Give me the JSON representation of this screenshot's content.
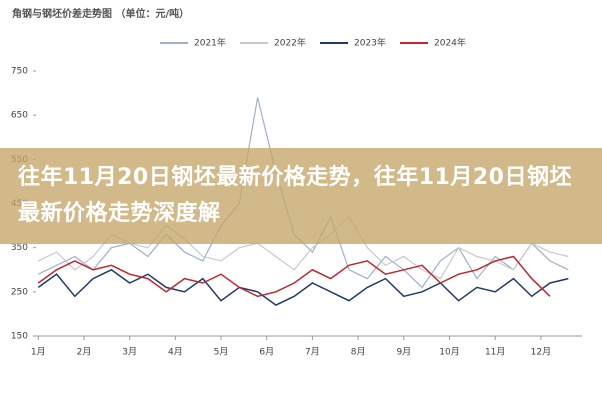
{
  "chart_data": {
    "type": "line",
    "title": "角钢与钢坯价差走势图 （单位：元/吨）",
    "x": [
      1,
      1.4,
      1.8,
      2.2,
      2.6,
      3,
      3.4,
      3.8,
      4.2,
      4.6,
      5,
      5.4,
      5.8,
      6.2,
      6.6,
      7,
      7.4,
      7.8,
      8.2,
      8.6,
      9,
      9.4,
      9.8,
      10.2,
      10.6,
      11,
      11.4,
      11.8,
      12.2,
      12.6
    ],
    "series": [
      {
        "name": "2021年",
        "color": "#9fb0cc",
        "values": [
          290,
          310,
          330,
          300,
          350,
          360,
          330,
          380,
          340,
          320,
          400,
          450,
          690,
          520,
          380,
          340,
          420,
          300,
          280,
          330,
          300,
          260,
          320,
          350,
          280,
          330,
          300,
          360,
          320,
          300
        ]
      },
      {
        "name": "2022年",
        "color": "#c9c9c9",
        "values": [
          320,
          340,
          300,
          330,
          380,
          360,
          350,
          400,
          370,
          330,
          320,
          350,
          360,
          330,
          300,
          350,
          380,
          420,
          350,
          310,
          330,
          300,
          280,
          350,
          330,
          320,
          300,
          360,
          340,
          330
        ]
      },
      {
        "name": "2023年",
        "color": "#1f3a6e",
        "values": [
          260,
          290,
          240,
          280,
          300,
          270,
          290,
          260,
          250,
          280,
          230,
          260,
          250,
          220,
          240,
          270,
          250,
          230,
          260,
          280,
          240,
          250,
          270,
          230,
          260,
          250,
          280,
          240,
          270,
          280
        ]
      },
      {
        "name": "2024年",
        "color": "#c0282d",
        "values": [
          270,
          300,
          320,
          300,
          310,
          290,
          280,
          250,
          280,
          270,
          290,
          260,
          240,
          250,
          270,
          300,
          280,
          310,
          320,
          290,
          300,
          310,
          270,
          290,
          300,
          320,
          330,
          280,
          240,
          null
        ]
      }
    ],
    "xlim": [
      0.95,
      12.9
    ],
    "xticks": [
      {
        "value": 1,
        "label": "1月"
      },
      {
        "value": 2,
        "label": "2月"
      },
      {
        "value": 3,
        "label": "3月"
      },
      {
        "value": 4,
        "label": "4月"
      },
      {
        "value": 5,
        "label": "5月"
      },
      {
        "value": 6,
        "label": "6月"
      },
      {
        "value": 7,
        "label": "7月"
      },
      {
        "value": 8,
        "label": "8月"
      },
      {
        "value": 9,
        "label": "9月"
      },
      {
        "value": 10,
        "label": "10月"
      },
      {
        "value": 11,
        "label": "11月"
      },
      {
        "value": 12,
        "label": "12月"
      }
    ],
    "ylim": [
      150,
      750
    ],
    "yticks": [
      150,
      250,
      350,
      450,
      550,
      650,
      750
    ]
  },
  "banner": {
    "text": "往年11月20日钢坯最新价格走势，往年11月20日钢坯最新价格走势深度解"
  }
}
